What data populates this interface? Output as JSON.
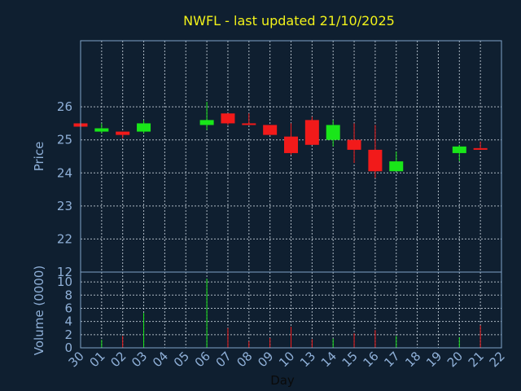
{
  "colors": {
    "background": "#0f1f30",
    "frame": "#7fa3c7",
    "grid": "#c8d2dc",
    "title": "#f2f21a",
    "axis_text": "#8fb0d8",
    "up": "#19e619",
    "down": "#f21a1a"
  },
  "chart_data": [
    {
      "type": "candlestick",
      "title": "NWFL - last updated 21/10/2025",
      "ylabel": "Price",
      "ylim": [
        21,
        28
      ],
      "yticks": [
        22,
        23,
        24,
        25,
        26
      ],
      "grid": true,
      "candles": [
        {
          "day": "30",
          "open": 25.5,
          "high": 25.5,
          "low": 25.4,
          "close": 25.4
        },
        {
          "day": "01",
          "open": 25.25,
          "high": 25.5,
          "low": 25.2,
          "close": 25.35
        },
        {
          "day": "02",
          "open": 25.25,
          "high": 25.25,
          "low": 25.05,
          "close": 25.15
        },
        {
          "day": "03",
          "open": 25.25,
          "high": 25.6,
          "low": 25.2,
          "close": 25.5
        },
        {
          "day": "06",
          "open": 25.45,
          "high": 26.15,
          "low": 25.3,
          "close": 25.6
        },
        {
          "day": "07",
          "open": 25.8,
          "high": 25.8,
          "low": 25.45,
          "close": 25.5
        },
        {
          "day": "08",
          "open": 25.5,
          "high": 25.8,
          "low": 25.45,
          "close": 25.45
        },
        {
          "day": "09",
          "open": 25.45,
          "high": 25.45,
          "low": 25.15,
          "close": 25.15
        },
        {
          "day": "10",
          "open": 25.1,
          "high": 25.5,
          "low": 24.55,
          "close": 24.6
        },
        {
          "day": "13",
          "open": 25.6,
          "high": 25.7,
          "low": 24.85,
          "close": 24.85
        },
        {
          "day": "14",
          "open": 25.0,
          "high": 25.6,
          "low": 24.8,
          "close": 25.45
        },
        {
          "day": "15",
          "open": 25.0,
          "high": 25.5,
          "low": 24.3,
          "close": 24.7
        },
        {
          "day": "16",
          "open": 24.7,
          "high": 25.45,
          "low": 23.85,
          "close": 24.05
        },
        {
          "day": "17",
          "open": 24.05,
          "high": 24.65,
          "low": 24.05,
          "close": 24.35
        },
        {
          "day": "20",
          "open": 24.6,
          "high": 24.85,
          "low": 24.35,
          "close": 24.8
        },
        {
          "day": "21",
          "open": 24.75,
          "high": 24.95,
          "low": 24.7,
          "close": 24.7
        }
      ]
    },
    {
      "type": "bar",
      "ylabel": "Volume (0000)",
      "xlabel": "Day",
      "ylim": [
        0,
        11.5
      ],
      "yticks": [
        0,
        2,
        4,
        6,
        8,
        10
      ],
      "top_tick_label": "12",
      "grid": true,
      "categories": [
        "30",
        "01",
        "02",
        "03",
        "04",
        "05",
        "06",
        "07",
        "08",
        "09",
        "10",
        "13",
        "14",
        "15",
        "16",
        "17",
        "18",
        "19",
        "20",
        "21",
        "22"
      ],
      "bars": [
        {
          "day": "30",
          "value": 0.1,
          "direction": "down"
        },
        {
          "day": "01",
          "value": 1.2,
          "direction": "up"
        },
        {
          "day": "02",
          "value": 1.8,
          "direction": "down"
        },
        {
          "day": "03",
          "value": 5.3,
          "direction": "up"
        },
        {
          "day": "06",
          "value": 10.5,
          "direction": "up"
        },
        {
          "day": "07",
          "value": 3.0,
          "direction": "down"
        },
        {
          "day": "08",
          "value": 1.0,
          "direction": "down"
        },
        {
          "day": "09",
          "value": 1.5,
          "direction": "down"
        },
        {
          "day": "10",
          "value": 3.2,
          "direction": "down"
        },
        {
          "day": "13",
          "value": 1.3,
          "direction": "down"
        },
        {
          "day": "14",
          "value": 1.4,
          "direction": "up"
        },
        {
          "day": "15",
          "value": 2.2,
          "direction": "down"
        },
        {
          "day": "16",
          "value": 2.7,
          "direction": "down"
        },
        {
          "day": "17",
          "value": 1.8,
          "direction": "up"
        },
        {
          "day": "20",
          "value": 1.6,
          "direction": "up"
        },
        {
          "day": "21",
          "value": 3.4,
          "direction": "down"
        }
      ]
    }
  ]
}
